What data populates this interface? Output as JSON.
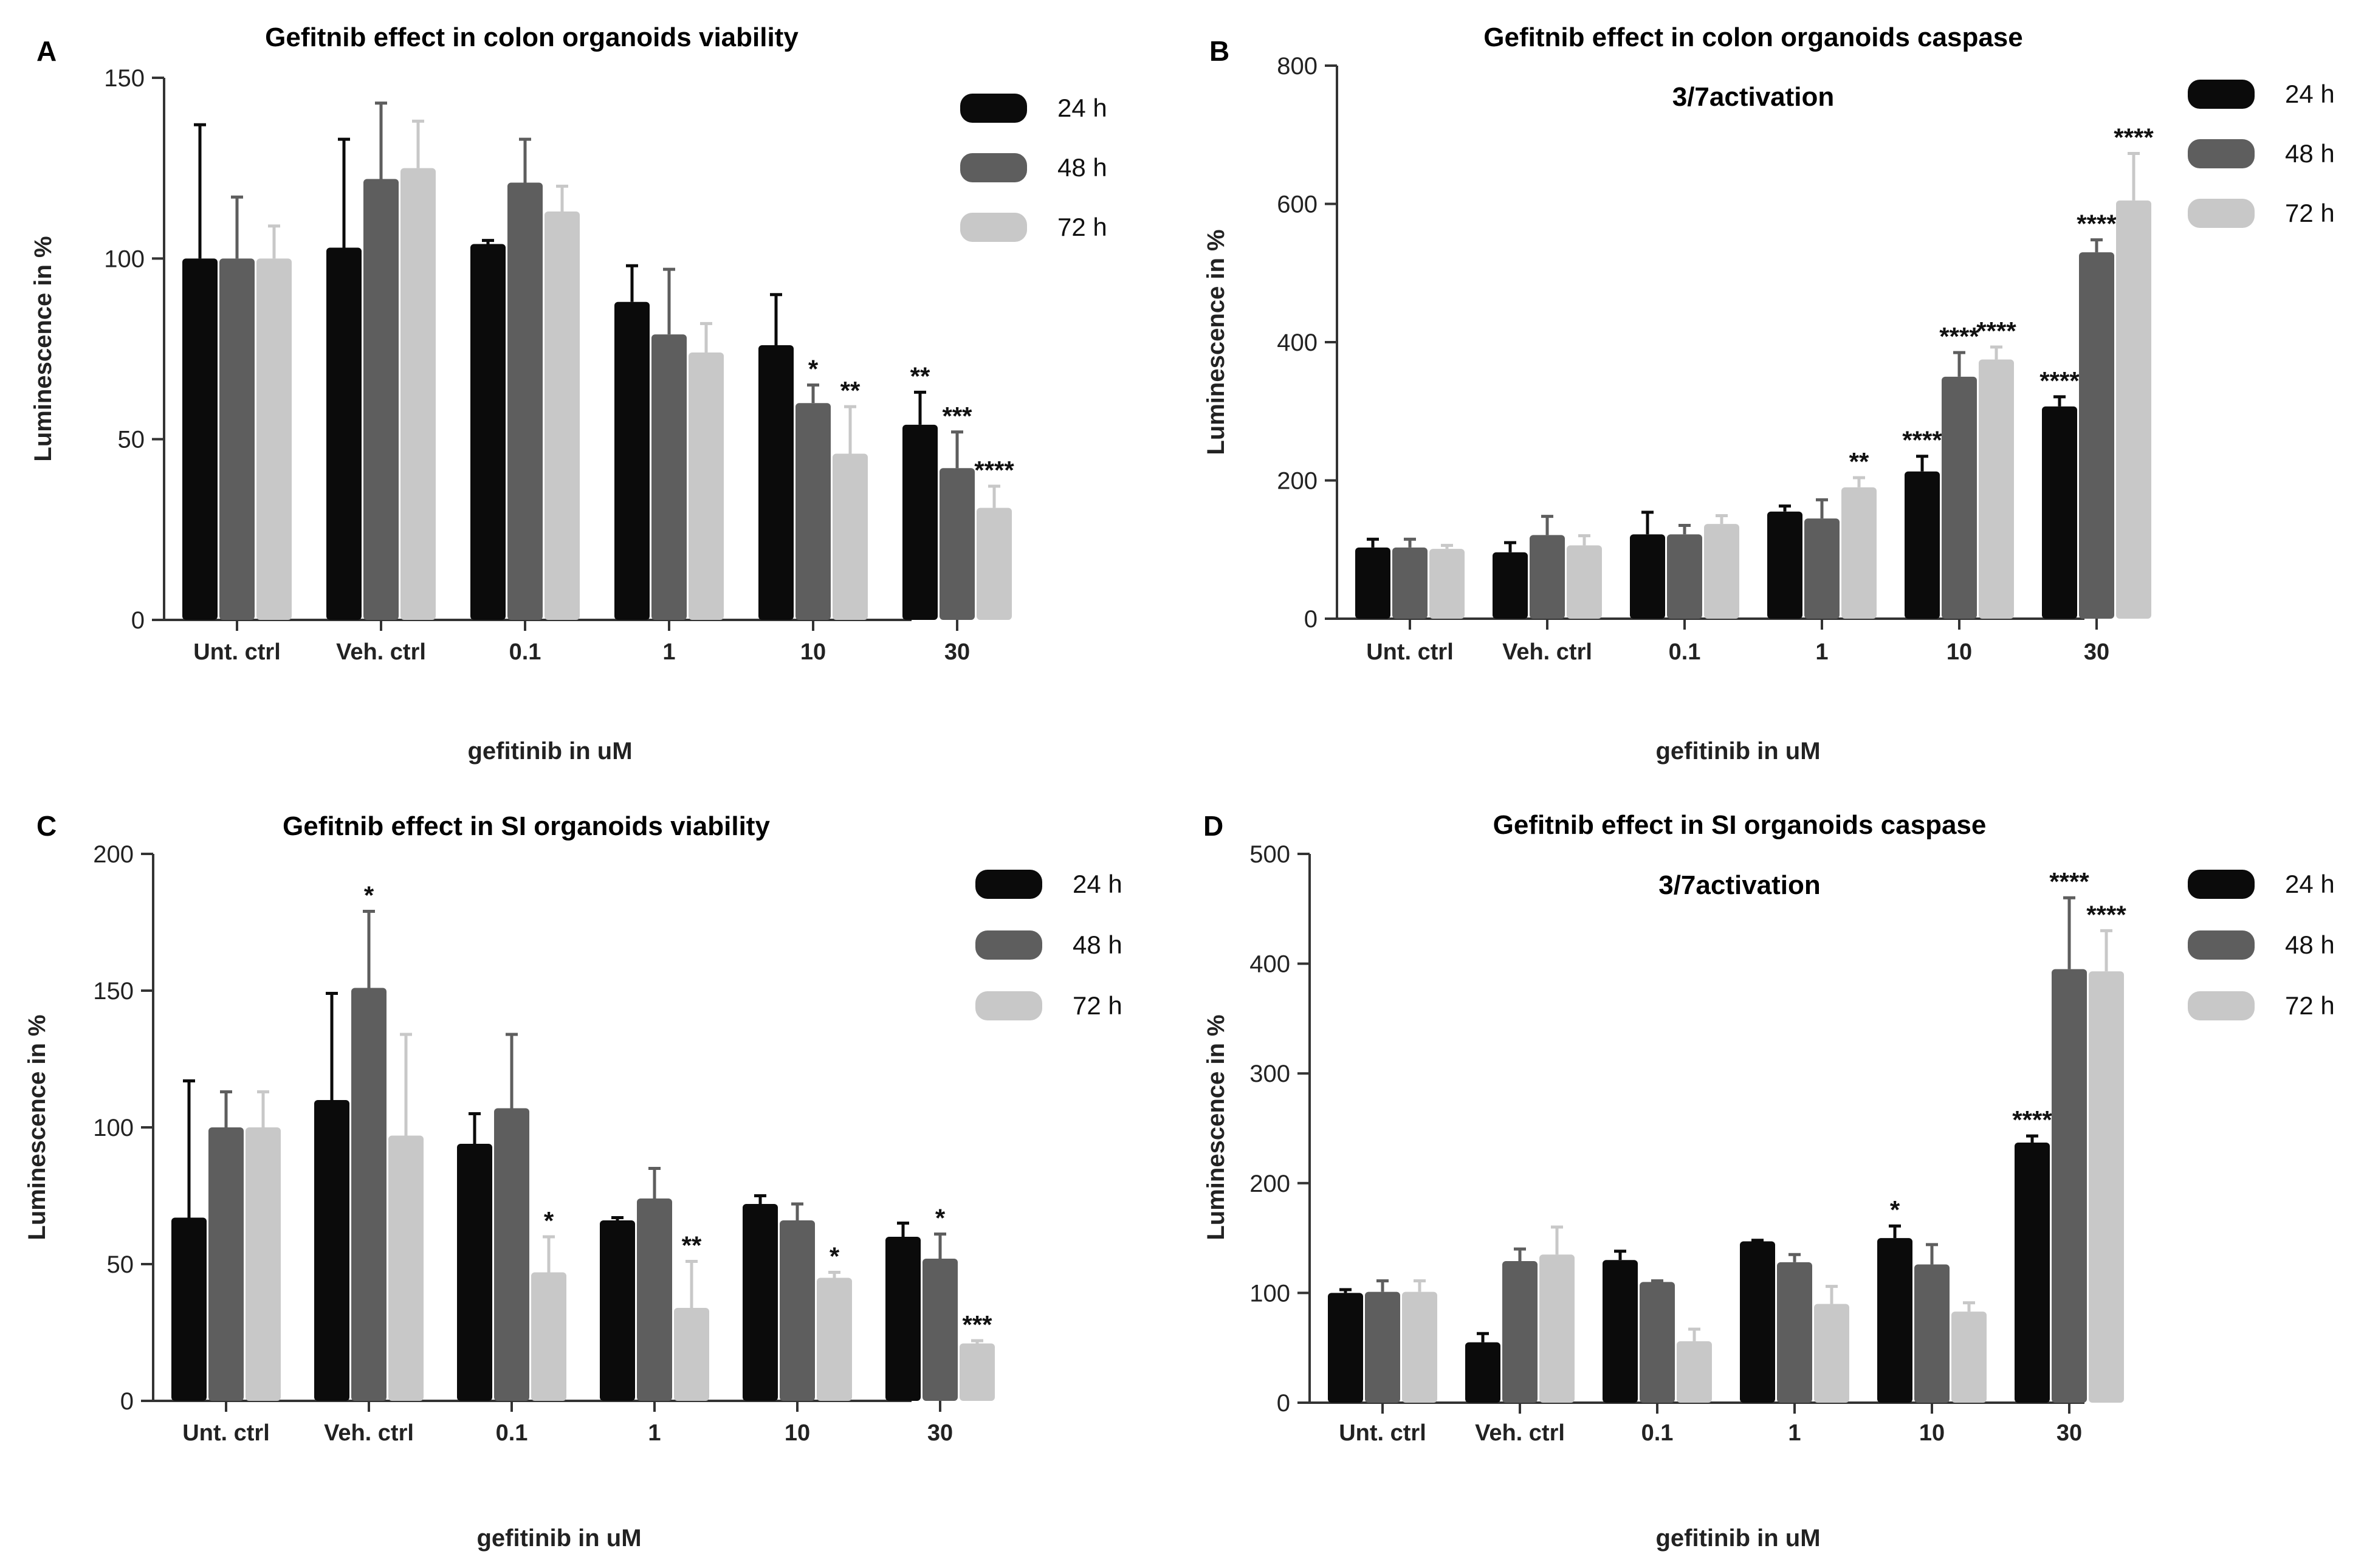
{
  "figure": {
    "legend": [
      "24 h",
      "48 h",
      "72 h"
    ],
    "colors": {
      "24 h": "#0b0b0b",
      "48 h": "#5e5e5e",
      "72 h": "#c8c8c8"
    }
  },
  "chart_data": [
    {
      "panel": "A",
      "type": "bar",
      "title": "Gefitnib effect in colon organoids viability",
      "xlabel": "gefitinib in uM",
      "ylabel": "Luminescence in %",
      "categories": [
        "Unt. ctrl",
        "Veh. ctrl",
        "0.1",
        "1",
        "10",
        "30"
      ],
      "ylim": [
        0,
        150
      ],
      "yticks": [
        "0",
        "50",
        "100",
        "150"
      ],
      "series": [
        {
          "name": "24 h",
          "values": [
            100,
            103,
            104,
            88,
            76,
            54
          ],
          "errors": [
            37,
            30,
            1,
            10,
            14,
            9
          ],
          "sig": [
            "",
            "",
            "",
            "",
            "",
            "**"
          ]
        },
        {
          "name": "48 h",
          "values": [
            100,
            122,
            121,
            79,
            60,
            42
          ],
          "errors": [
            17,
            21,
            12,
            18,
            5,
            10
          ],
          "sig": [
            "",
            "",
            "",
            "",
            "*",
            "***"
          ]
        },
        {
          "name": "72 h",
          "values": [
            100,
            125,
            113,
            74,
            46,
            31
          ],
          "errors": [
            9,
            13,
            7,
            8,
            13,
            6
          ],
          "sig": [
            "",
            "",
            "",
            "",
            "**",
            "****"
          ]
        }
      ]
    },
    {
      "panel": "B",
      "type": "bar",
      "title": [
        "Gefitnib effect in colon organoids caspase",
        "3/7activation"
      ],
      "xlabel": "gefitinib in uM",
      "ylabel": "Luminescence in %",
      "categories": [
        "Unt. ctrl",
        "Veh. ctrl",
        "0.1",
        "1",
        "10",
        "30"
      ],
      "ylim": [
        0,
        800
      ],
      "yticks": [
        "0",
        "200",
        "400",
        "600",
        "800"
      ],
      "series": [
        {
          "name": "24 h",
          "values": [
            103,
            96,
            122,
            155,
            213,
            307
          ],
          "errors": [
            12,
            14,
            32,
            8,
            22,
            14
          ],
          "sig": [
            "",
            "",
            "",
            "",
            "****",
            "****"
          ]
        },
        {
          "name": "48 h",
          "values": [
            103,
            121,
            122,
            145,
            350,
            530
          ],
          "errors": [
            12,
            27,
            13,
            27,
            35,
            18
          ],
          "sig": [
            "",
            "",
            "",
            "",
            "****",
            "****"
          ]
        },
        {
          "name": "72 h",
          "values": [
            101,
            106,
            137,
            190,
            375,
            605
          ],
          "errors": [
            5,
            14,
            12,
            14,
            18,
            68
          ],
          "sig": [
            "",
            "",
            "",
            "**",
            "****",
            "****"
          ]
        }
      ]
    },
    {
      "panel": "C",
      "type": "bar",
      "title": "Gefitnib effect in SI organoids viability",
      "xlabel": "gefitinib in uM",
      "ylabel": "Luminescence in %",
      "categories": [
        "Unt. ctrl",
        "Veh. ctrl",
        "0.1",
        "1",
        "10",
        "30"
      ],
      "ylim": [
        0,
        200
      ],
      "yticks": [
        "0",
        "50",
        "100",
        "150",
        "200"
      ],
      "series": [
        {
          "name": "24 h",
          "values": [
            67,
            110,
            94,
            66,
            72,
            60
          ],
          "errors": [
            50,
            39,
            11,
            1,
            3,
            5
          ],
          "sig": [
            "",
            "",
            "",
            "",
            "",
            ""
          ]
        },
        {
          "name": "48 h",
          "values": [
            100,
            151,
            107,
            74,
            66,
            52
          ],
          "errors": [
            13,
            28,
            27,
            11,
            6,
            9
          ],
          "sig": [
            "",
            "*",
            "",
            "",
            "",
            "*"
          ]
        },
        {
          "name": "72 h",
          "values": [
            100,
            97,
            47,
            34,
            45,
            21
          ],
          "errors": [
            13,
            37,
            13,
            17,
            2,
            1
          ],
          "sig": [
            "",
            "",
            "*",
            "**",
            "*",
            "***"
          ]
        }
      ]
    },
    {
      "panel": "D",
      "type": "bar",
      "title": [
        "Gefitnib effect in SI organoids caspase",
        "3/7activation"
      ],
      "xlabel": "gefitinib in uM",
      "ylabel": "Luminescence in %",
      "categories": [
        "Unt. ctrl",
        "Veh. ctrl",
        "0.1",
        "1",
        "10",
        "30"
      ],
      "ylim": [
        0,
        500
      ],
      "yticks": [
        "0",
        "100",
        "200",
        "300",
        "400",
        "500"
      ],
      "series": [
        {
          "name": "24 h",
          "values": [
            100,
            55,
            130,
            147,
            150,
            237
          ],
          "errors": [
            3,
            8,
            8,
            1,
            11,
            6
          ],
          "sig": [
            "",
            "",
            "",
            "",
            "*",
            "****"
          ]
        },
        {
          "name": "48 h",
          "values": [
            101,
            129,
            110,
            128,
            126,
            395
          ],
          "errors": [
            10,
            11,
            1,
            7,
            18,
            65
          ],
          "sig": [
            "",
            "",
            "",
            "",
            "",
            "****"
          ]
        },
        {
          "name": "72 h",
          "values": [
            101,
            135,
            56,
            90,
            83,
            393
          ],
          "errors": [
            10,
            25,
            11,
            16,
            8,
            37
          ],
          "sig": [
            "",
            "",
            "",
            "",
            "",
            "****"
          ]
        }
      ]
    }
  ]
}
